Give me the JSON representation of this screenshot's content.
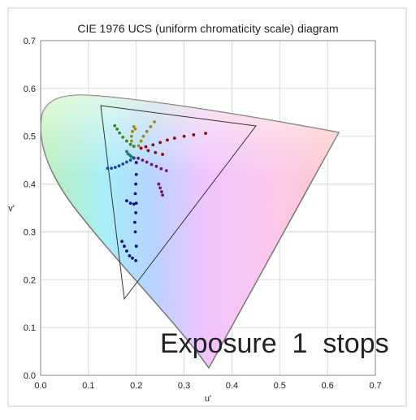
{
  "chart_data": {
    "type": "scatter",
    "title": "CIE 1976 UCS (uniform chromaticity scale) diagram",
    "xlabel": "u'",
    "ylabel": "v'",
    "annotation": "Exposure  1  stops",
    "xlim": [
      0,
      0.7
    ],
    "ylim": [
      0,
      0.7
    ],
    "xticks": [
      {
        "value": 0,
        "label": "0.0"
      },
      0.1,
      0.2,
      0.3,
      0.4,
      0.5,
      0.6,
      0.7
    ],
    "yticks": [
      {
        "value": 0,
        "label": "0.0"
      },
      0.1,
      0.2,
      0.3,
      0.4,
      0.5,
      0.6,
      0.7
    ],
    "grid": true,
    "series": [
      {
        "color": "#8b0a0a",
        "x": [
          0.21,
          0.22,
          0.235,
          0.25,
          0.265,
          0.28,
          0.3,
          0.32,
          0.345,
          0.225,
          0.24,
          0.255
        ],
        "values": [
          0.475,
          0.478,
          0.482,
          0.487,
          0.492,
          0.496,
          0.5,
          0.503,
          0.506,
          0.47,
          0.466,
          0.462
        ]
      },
      {
        "color": "#9a8a10",
        "x": [
          0.205,
          0.21,
          0.215,
          0.222,
          0.23,
          0.238,
          0.19,
          0.19,
          0.192,
          0.195,
          0.198
        ],
        "values": [
          0.48,
          0.49,
          0.5,
          0.51,
          0.52,
          0.53,
          0.49,
          0.5,
          0.51,
          0.52,
          0.515
        ]
      },
      {
        "color": "#2f8a1a",
        "x": [
          0.155,
          0.16,
          0.165,
          0.172,
          0.18,
          0.188,
          0.195
        ],
        "values": [
          0.522,
          0.515,
          0.507,
          0.498,
          0.49,
          0.483,
          0.479
        ]
      },
      {
        "color": "#1a7a7a",
        "x": [
          0.18,
          0.183,
          0.187,
          0.19,
          0.195
        ],
        "values": [
          0.468,
          0.463,
          0.46,
          0.457,
          0.455
        ]
      },
      {
        "color": "#1a4a9a",
        "x": [
          0.14,
          0.148,
          0.156,
          0.164,
          0.172,
          0.18,
          0.188,
          0.195
        ],
        "values": [
          0.433,
          0.433,
          0.435,
          0.438,
          0.442,
          0.446,
          0.45,
          0.454
        ]
      },
      {
        "color": "#10107a",
        "x": [
          0.2,
          0.2,
          0.199,
          0.198,
          0.2,
          0.199,
          0.197,
          0.198,
          0.2,
          0.199,
          0.17,
          0.175,
          0.18,
          0.186,
          0.192,
          0.18,
          0.188,
          0.195
        ],
        "values": [
          0.445,
          0.42,
          0.4,
          0.38,
          0.36,
          0.34,
          0.32,
          0.3,
          0.27,
          0.24,
          0.28,
          0.27,
          0.26,
          0.25,
          0.245,
          0.365,
          0.36,
          0.358
        ]
      },
      {
        "color": "#7a107a",
        "x": [
          0.204,
          0.213,
          0.222,
          0.232,
          0.242,
          0.252,
          0.263,
          0.247,
          0.25,
          0.253,
          0.255
        ],
        "values": [
          0.454,
          0.45,
          0.446,
          0.441,
          0.437,
          0.432,
          0.428,
          0.4,
          0.392,
          0.384,
          0.377
        ]
      }
    ]
  }
}
